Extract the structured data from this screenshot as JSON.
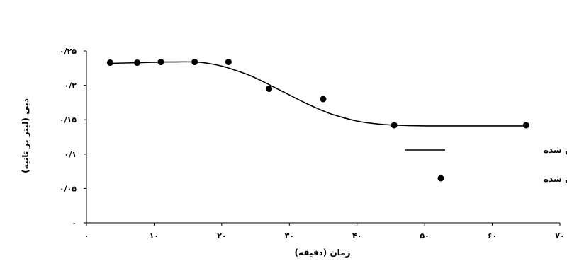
{
  "chart_data": {
    "type": "scatter",
    "xlabel": "زمان (دقیقه)",
    "ylabel": "دبی (لیتر بر ثانیه)",
    "xlim": [
      0,
      70
    ],
    "ylim": [
      0,
      0.25
    ],
    "x_ticks": [
      0,
      10,
      20,
      30,
      40,
      50,
      60,
      70
    ],
    "x_tick_labels": [
      "۰",
      "۱۰",
      "۲۰",
      "۳۰",
      "۴۰",
      "۵۰",
      "۶۰",
      "۷۰"
    ],
    "y_ticks": [
      0,
      0.05,
      0.1,
      0.15,
      0.2,
      0.25
    ],
    "y_tick_labels": [
      "۰",
      "۰/۰۵",
      "۰/۱",
      "۰/۱۵",
      "۰/۲",
      "۰/۲۵"
    ],
    "grid": false,
    "legend_position": "right",
    "series": [
      {
        "name": "مقادیر برازش شده",
        "style": "line",
        "color": "#000000",
        "x": [
          3.5,
          8,
          12,
          16,
          18,
          20,
          22,
          24,
          26,
          28,
          30,
          32,
          34,
          36,
          38,
          40,
          42,
          44,
          46,
          50,
          55,
          60,
          65
        ],
        "y": [
          0.232,
          0.233,
          0.234,
          0.234,
          0.232,
          0.228,
          0.222,
          0.215,
          0.206,
          0.196,
          0.186,
          0.176,
          0.167,
          0.159,
          0.153,
          0.148,
          0.145,
          0.143,
          0.142,
          0.141,
          0.141,
          0.141,
          0.141
        ]
      },
      {
        "name": "مقادیر اندازه گیری شده",
        "style": "marker",
        "color": "#000000",
        "x": [
          3.5,
          7.5,
          11,
          16,
          21,
          27,
          35,
          45.5,
          65
        ],
        "y": [
          0.233,
          0.233,
          0.234,
          0.234,
          0.234,
          0.195,
          0.18,
          0.142,
          0.142
        ]
      }
    ]
  }
}
